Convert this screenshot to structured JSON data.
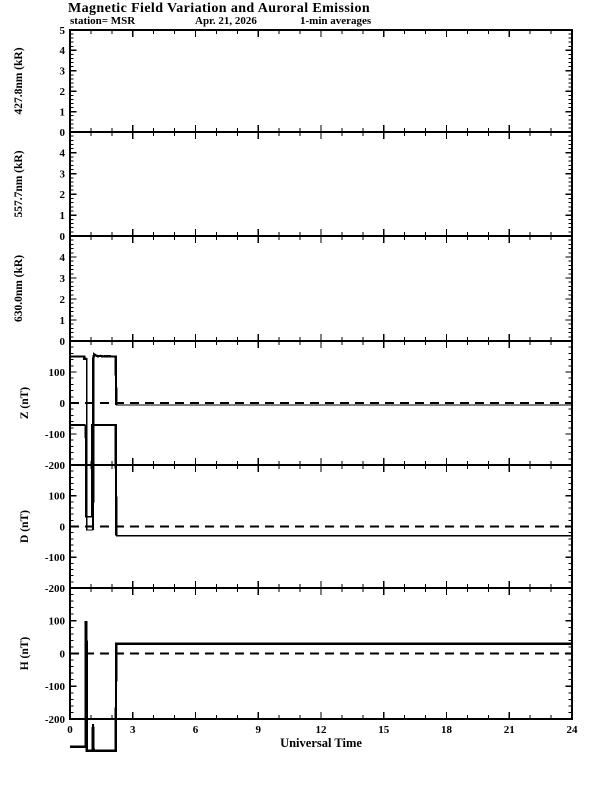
{
  "header": {
    "title": "Magnetic Field Variation and Auroral Emission",
    "station": "station= MSR",
    "date": "Apr. 21, 2026",
    "averaging": "1-min averages"
  },
  "x_axis": {
    "title": "Universal Time",
    "min": 0,
    "max": 24,
    "major_step": 3,
    "minor_step": 1,
    "ticks": [
      {
        "value": 0,
        "label": "0"
      },
      {
        "value": 3,
        "label": "3"
      },
      {
        "value": 6,
        "label": "6"
      },
      {
        "value": 9,
        "label": "9"
      },
      {
        "value": 12,
        "label": "12"
      },
      {
        "value": 15,
        "label": "15"
      },
      {
        "value": 18,
        "label": "18"
      },
      {
        "value": 21,
        "label": "21"
      },
      {
        "value": 24,
        "label": "24"
      }
    ]
  },
  "chart_data": [
    {
      "type": "line",
      "name": "427.8nm",
      "ylabel": "427.8nm (kR)",
      "ylim": [
        0,
        5
      ],
      "ytick_major": 1,
      "ytick_minor": 0.2,
      "ytick_labels": [
        {
          "value": 5,
          "text": "5"
        },
        {
          "value": 4,
          "text": "4"
        },
        {
          "value": 3,
          "text": "3"
        },
        {
          "value": 2,
          "text": "2"
        },
        {
          "value": 1,
          "text": "1"
        },
        {
          "value": 0,
          "text": "0"
        }
      ],
      "zero_line": false,
      "series": []
    },
    {
      "type": "line",
      "name": "557.7nm",
      "ylabel": "557.7nm (kR)",
      "ylim": [
        0,
        5
      ],
      "ytick_major": 1,
      "ytick_minor": 0.2,
      "ytick_labels": [
        {
          "value": 4,
          "text": "4"
        },
        {
          "value": 3,
          "text": "3"
        },
        {
          "value": 2,
          "text": "2"
        },
        {
          "value": 1,
          "text": "1"
        },
        {
          "value": 0,
          "text": "0"
        }
      ],
      "zero_line": false,
      "series": []
    },
    {
      "type": "line",
      "name": "630.0nm",
      "ylabel": "630.0nm (kR)",
      "ylim": [
        0,
        5
      ],
      "ytick_major": 1,
      "ytick_minor": 0.2,
      "ytick_labels": [
        {
          "value": 4,
          "text": "4"
        },
        {
          "value": 3,
          "text": "3"
        },
        {
          "value": 2,
          "text": "2"
        },
        {
          "value": 1,
          "text": "1"
        },
        {
          "value": 0,
          "text": "0"
        }
      ],
      "zero_line": false,
      "series": []
    },
    {
      "type": "line",
      "name": "Z",
      "ylabel": "Z (nT)",
      "ylim": [
        -200,
        200
      ],
      "ytick_major": 100,
      "ytick_minor": 20,
      "ytick_labels": [
        {
          "value": 100,
          "text": "100"
        },
        {
          "value": 0,
          "text": "0"
        },
        {
          "value": -100,
          "text": "-100"
        },
        {
          "value": -200,
          "text": "-200"
        }
      ],
      "zero_line": true,
      "series": [
        {
          "name": "Z",
          "segments": [
            {
              "w": 2.4,
              "points": [
                [
                  0,
                  150
                ],
                [
                  0.68,
                  150
                ],
                [
                  0.68,
                  143
                ],
                [
                  0.78,
                  143
                ]
              ]
            },
            {
              "w": 1.1,
              "points": [
                [
                  0.78,
                  143
                ],
                [
                  0.8,
                  143
                ],
                [
                  0.8,
                  -410
                ],
                [
                  1.1,
                  -410
                ]
              ]
            },
            {
              "w": 2.4,
              "points": [
                [
                  1.1,
                  -410
                ],
                [
                  1.12,
                  145
                ],
                [
                  1.15,
                  157
                ],
                [
                  1.22,
                  154
                ],
                [
                  1.32,
                  151
                ],
                [
                  1.45,
                  152
                ],
                [
                  1.6,
                  150
                ],
                [
                  1.8,
                  151
                ],
                [
                  2.0,
                  150
                ],
                [
                  2.19,
                  150
                ],
                [
                  2.21,
                  -6
                ]
              ]
            },
            {
              "w": 1.1,
              "points": [
                [
                  2.21,
                  -6
                ],
                [
                  24,
                  -6
                ]
              ]
            }
          ]
        }
      ]
    },
    {
      "type": "line",
      "name": "D",
      "ylabel": "D (nT)",
      "ylim": [
        -200,
        200
      ],
      "ytick_major": 100,
      "ytick_minor": 20,
      "ytick_labels": [
        {
          "value": 100,
          "text": "100"
        },
        {
          "value": 0,
          "text": "0"
        },
        {
          "value": -100,
          "text": "-100"
        },
        {
          "value": -200,
          "text": "-200"
        }
      ],
      "zero_line": true,
      "series": [
        {
          "name": "D",
          "segments": [
            {
              "w": 2.4,
              "points": [
                [
                  0,
                  330
                ],
                [
                  0.73,
                  330
                ]
              ]
            },
            {
              "w": 1.2,
              "points": [
                [
                  0.73,
                  330
                ],
                [
                  0.75,
                  32
                ],
                [
                  1.05,
                  32
                ]
              ]
            },
            {
              "w": 2.4,
              "points": [
                [
                  1.05,
                  32
                ],
                [
                  1.07,
                  330
                ],
                [
                  2.19,
                  330
                ],
                [
                  2.21,
                  -30
                ]
              ]
            },
            {
              "w": 1.1,
              "points": [
                [
                  2.21,
                  -30
                ],
                [
                  24,
                  -30
                ]
              ]
            }
          ]
        }
      ]
    },
    {
      "type": "line",
      "name": "H",
      "ylabel": "H (nT)",
      "ylim": [
        -200,
        200
      ],
      "ytick_major": 100,
      "ytick_minor": 20,
      "ytick_labels": [
        {
          "value": 100,
          "text": "100"
        },
        {
          "value": 0,
          "text": "0"
        },
        {
          "value": -100,
          "text": "-100"
        },
        {
          "value": -200,
          "text": "-200"
        }
      ],
      "zero_line": true,
      "series": [
        {
          "name": "H",
          "segments": [
            {
              "w": 2.4,
              "points": [
                [
                  0,
                  -285
                ],
                [
                  0.74,
                  -285
                ],
                [
                  0.76,
                  95
                ],
                [
                  0.79,
                  95
                ],
                [
                  0.81,
                  -297
                ],
                [
                  1.08,
                  -297
                ],
                [
                  1.1,
                  -215
                ],
                [
                  1.13,
                  -297
                ],
                [
                  2.19,
                  -297
                ],
                [
                  2.21,
                  30
                ],
                [
                  24,
                  30
                ]
              ]
            }
          ]
        }
      ]
    }
  ]
}
